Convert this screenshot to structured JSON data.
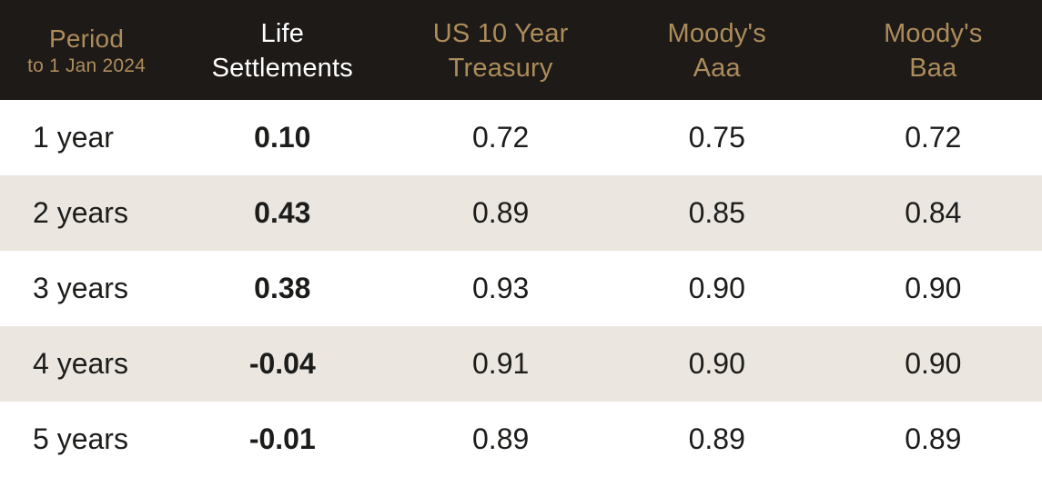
{
  "theme": {
    "header_bg": "#1d1a17",
    "gold": "#ad8c5b",
    "highlight": "#ffffff",
    "stripe": "#ebe6e0",
    "row_bg": "#ffffff",
    "text": "#1c1c1a"
  },
  "table": {
    "columns": [
      {
        "id": "period",
        "line1": "Period",
        "line2": "to 1 Jan 2024"
      },
      {
        "id": "life_settlements",
        "line1": "Life",
        "line2": "Settlements",
        "highlighted": true
      },
      {
        "id": "us_10_year_treasury",
        "line1": "US 10 Year",
        "line2": "Treasury"
      },
      {
        "id": "moodys_aaa",
        "line1": "Moody's",
        "line2": "Aaa"
      },
      {
        "id": "moodys_baa",
        "line1": "Moody's",
        "line2": "Baa"
      }
    ],
    "rows": [
      {
        "label": "1 year",
        "values": [
          "0.10",
          "0.72",
          "0.75",
          "0.72"
        ]
      },
      {
        "label": "2 years",
        "values": [
          "0.43",
          "0.89",
          "0.85",
          "0.84"
        ]
      },
      {
        "label": "3 years",
        "values": [
          "0.38",
          "0.93",
          "0.90",
          "0.90"
        ]
      },
      {
        "label": "4 years",
        "values": [
          "-0.04",
          "0.91",
          "0.90",
          "0.90"
        ]
      },
      {
        "label": "5 years",
        "values": [
          "-0.01",
          "0.89",
          "0.89",
          "0.89"
        ]
      }
    ]
  },
  "chart_data": {
    "type": "table",
    "title": "",
    "period_note": "Period to 1 Jan 2024",
    "categories": [
      "1 year",
      "2 years",
      "3 years",
      "4 years",
      "5 years"
    ],
    "series": [
      {
        "name": "Life Settlements",
        "values": [
          0.1,
          0.43,
          0.38,
          -0.04,
          -0.01
        ]
      },
      {
        "name": "US 10 Year Treasury",
        "values": [
          0.72,
          0.89,
          0.93,
          0.91,
          0.89
        ]
      },
      {
        "name": "Moody's Aaa",
        "values": [
          0.75,
          0.85,
          0.9,
          0.9,
          0.89
        ]
      },
      {
        "name": "Moody's Baa",
        "values": [
          0.72,
          0.84,
          0.9,
          0.9,
          0.89
        ]
      }
    ],
    "layout_hints": {
      "highlighted_column": "Life Settlements",
      "striped_rows": [
        2,
        4
      ],
      "header_style": "dark with gold text"
    }
  }
}
